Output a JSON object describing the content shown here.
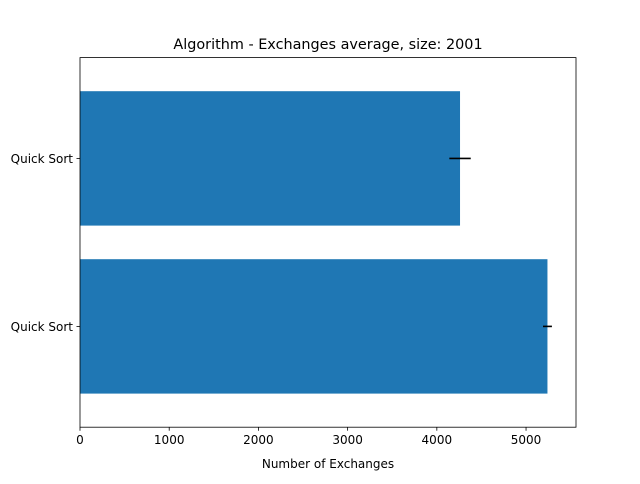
{
  "chart_data": {
    "type": "bar",
    "orientation": "horizontal",
    "title": "Algorithm - Exchanges average, size: 2001",
    "xlabel": "Number of Exchanges",
    "ylabel": "",
    "categories": [
      "Quick Sort",
      "Quick Sort"
    ],
    "values": [
      5240,
      4260
    ],
    "errors": [
      50,
      120
    ],
    "xlim": [
      0,
      5560
    ],
    "xticks": [
      0,
      1000,
      2000,
      3000,
      4000,
      5000
    ],
    "xtick_labels": [
      "0",
      "1000",
      "2000",
      "3000",
      "4000",
      "5000"
    ],
    "grid": false,
    "legend": "none",
    "colors": {
      "bar": "#1f77b4",
      "error": "#000000",
      "axis": "#000000",
      "background": "#ffffff"
    }
  }
}
